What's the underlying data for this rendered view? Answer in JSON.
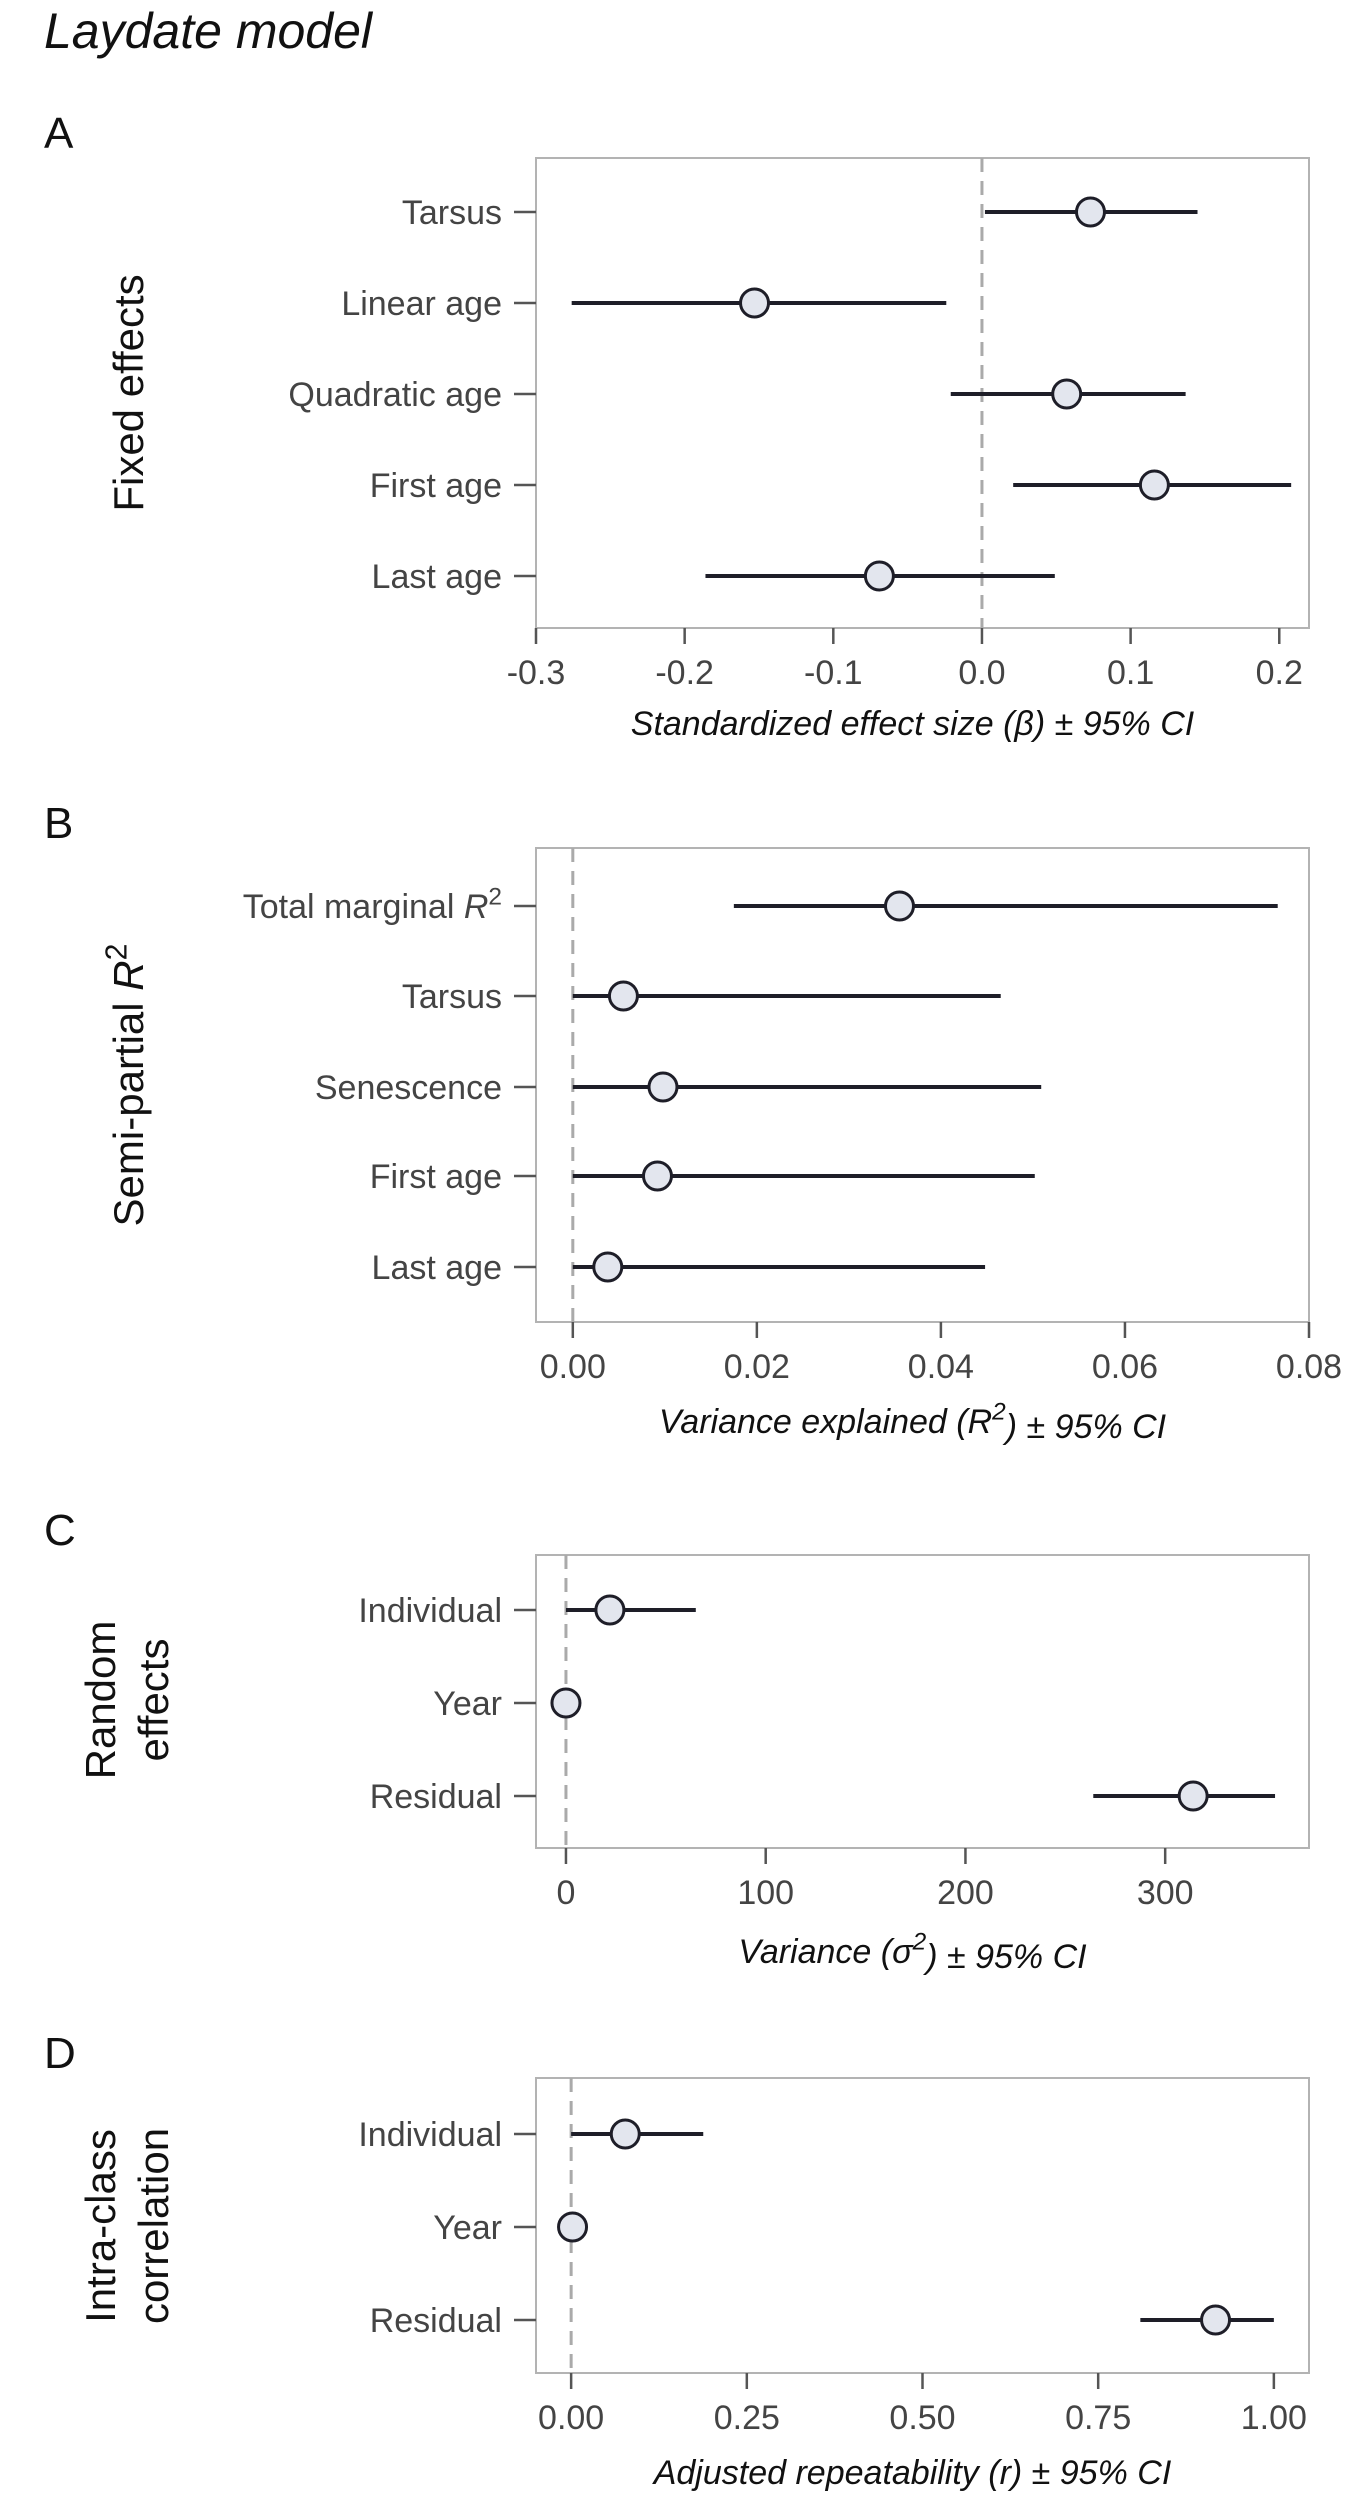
{
  "title": "Laydate model",
  "chart_data": [
    {
      "panel": "A",
      "type": "scatter",
      "ylabel": "Fixed effects",
      "xlabel": "Standardized effect size (β) ± 95% CI",
      "xlim": [
        -0.3,
        0.22
      ],
      "ticks": [
        -0.3,
        -0.2,
        -0.1,
        0.0,
        0.1,
        0.2
      ],
      "tick_labels": [
        "-0.3",
        "-0.2",
        "-0.1",
        "0.0",
        "0.1",
        "0.2"
      ],
      "reference_line": 0,
      "categories": [
        "Tarsus",
        "Linear age",
        "Quadratic age",
        "First age",
        "Last age"
      ],
      "estimate": [
        0.073,
        -0.153,
        0.057,
        0.116,
        -0.069
      ],
      "lower": [
        0.002,
        -0.276,
        -0.021,
        0.021,
        -0.186
      ],
      "upper": [
        0.145,
        -0.024,
        0.137,
        0.208,
        0.049
      ]
    },
    {
      "panel": "B",
      "type": "scatter",
      "ylabel": "Semi-partial R²",
      "xlabel": "Variance explained (R²) ± 95% CI",
      "xlim": [
        -0.004,
        0.08
      ],
      "ticks": [
        0.0,
        0.02,
        0.04,
        0.06,
        0.08
      ],
      "tick_labels": [
        "0.00",
        "0.02",
        "0.04",
        "0.06",
        "0.08"
      ],
      "reference_line": 0,
      "categories": [
        "Total marginal R²",
        "Tarsus",
        "Senescence",
        "First age",
        "Last age"
      ],
      "estimate": [
        0.0355,
        0.0055,
        0.0098,
        0.0092,
        0.0038
      ],
      "lower": [
        0.0175,
        0.0,
        0.0,
        0.0,
        0.0
      ],
      "upper": [
        0.0766,
        0.0465,
        0.0509,
        0.0502,
        0.0448
      ]
    },
    {
      "panel": "C",
      "type": "scatter",
      "ylabel": "Random effects",
      "xlabel": "Variance (σ²) ± 95% CI",
      "xlim": [
        -15,
        372
      ],
      "ticks": [
        0,
        100,
        200,
        300
      ],
      "tick_labels": [
        "0",
        "100",
        "200",
        "300"
      ],
      "reference_line": 0,
      "categories": [
        "Individual",
        "Year",
        "Residual"
      ],
      "estimate": [
        22,
        0,
        314
      ],
      "lower": [
        0,
        0,
        264
      ],
      "upper": [
        65,
        0,
        355
      ]
    },
    {
      "panel": "D",
      "type": "scatter",
      "ylabel": "Intra-class correlation",
      "xlabel": "Adjusted repeatability (r) ± 95% CI",
      "xlim": [
        -0.05,
        1.05
      ],
      "ticks": [
        0.0,
        0.25,
        0.5,
        0.75,
        1.0
      ],
      "tick_labels": [
        "0.00",
        "0.25",
        "0.50",
        "0.75",
        "1.00"
      ],
      "reference_line": 0,
      "categories": [
        "Individual",
        "Year",
        "Residual"
      ],
      "estimate": [
        0.077,
        0.002,
        0.917
      ],
      "lower": [
        0.0,
        0.0,
        0.81
      ],
      "upper": [
        0.188,
        0.0,
        1.0
      ]
    }
  ]
}
